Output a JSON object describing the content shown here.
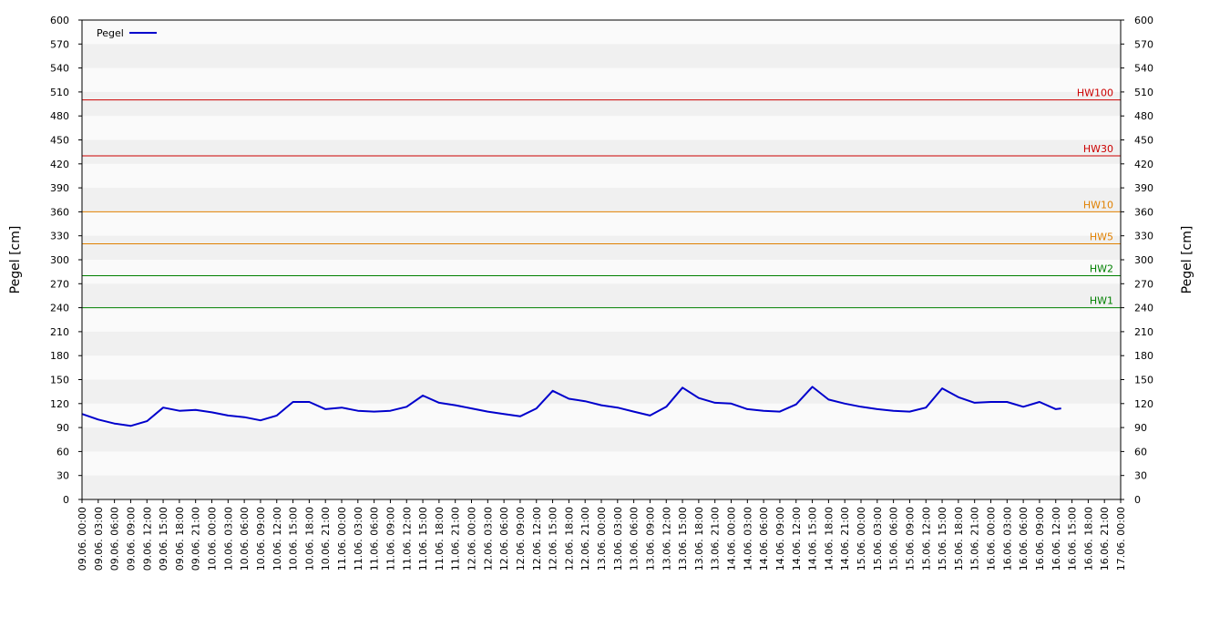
{
  "chart_data": {
    "type": "line",
    "y_label": "Pegel [cm]",
    "y2_label": "Pegel [cm]",
    "ylim": [
      0,
      600
    ],
    "yticks": [
      0,
      30,
      60,
      90,
      120,
      150,
      180,
      210,
      240,
      270,
      300,
      330,
      360,
      390,
      420,
      450,
      480,
      510,
      540,
      570,
      600
    ],
    "y2lim": [
      0,
      600
    ],
    "y2ticks": [
      0,
      30,
      60,
      90,
      120,
      150,
      180,
      210,
      240,
      270,
      300,
      330,
      360,
      390,
      420,
      450,
      480,
      510,
      540,
      570,
      600
    ],
    "bands": true,
    "legend": "top-left",
    "xlim": [
      "09.06. 00:00",
      "17.06. 00:00"
    ],
    "xticks": [
      "09.06. 00:00",
      "09.06. 03:00",
      "09.06. 06:00",
      "09.06. 09:00",
      "09.06. 12:00",
      "09.06. 15:00",
      "09.06. 18:00",
      "09.06. 21:00",
      "10.06. 00:00",
      "10.06. 03:00",
      "10.06. 06:00",
      "10.06. 09:00",
      "10.06. 12:00",
      "10.06. 15:00",
      "10.06. 18:00",
      "10.06. 21:00",
      "11.06. 00:00",
      "11.06. 03:00",
      "11.06. 06:00",
      "11.06. 09:00",
      "11.06. 12:00",
      "11.06. 15:00",
      "11.06. 18:00",
      "11.06. 21:00",
      "12.06. 00:00",
      "12.06. 03:00",
      "12.06. 06:00",
      "12.06. 09:00",
      "12.06. 12:00",
      "12.06. 15:00",
      "12.06. 18:00",
      "12.06. 21:00",
      "13.06. 00:00",
      "13.06. 03:00",
      "13.06. 06:00",
      "13.06. 09:00",
      "13.06. 12:00",
      "13.06. 15:00",
      "13.06. 18:00",
      "13.06. 21:00",
      "14.06. 00:00",
      "14.06. 03:00",
      "14.06. 06:00",
      "14.06. 09:00",
      "14.06. 12:00",
      "14.06. 15:00",
      "14.06. 18:00",
      "14.06. 21:00",
      "15.06. 00:00",
      "15.06. 03:00",
      "15.06. 06:00",
      "15.06. 09:00",
      "15.06. 12:00",
      "15.06. 15:00",
      "15.06. 18:00",
      "15.06. 21:00",
      "16.06. 00:00",
      "16.06. 03:00",
      "16.06. 06:00",
      "16.06. 09:00",
      "16.06. 12:00",
      "16.06. 15:00",
      "16.06. 18:00",
      "16.06. 21:00",
      "17.06. 00:00"
    ],
    "x": [
      "09.06. 00:00",
      "09.06. 03:00",
      "09.06. 06:00",
      "09.06. 09:00",
      "09.06. 12:00",
      "09.06. 15:00",
      "09.06. 18:00",
      "09.06. 21:00",
      "10.06. 00:00",
      "10.06. 03:00",
      "10.06. 06:00",
      "10.06. 09:00",
      "10.06. 12:00",
      "10.06. 15:00",
      "10.06. 18:00",
      "10.06. 21:00",
      "11.06. 00:00",
      "11.06. 03:00",
      "11.06. 06:00",
      "11.06. 09:00",
      "11.06. 12:00",
      "11.06. 15:00",
      "11.06. 18:00",
      "11.06. 21:00",
      "12.06. 00:00",
      "12.06. 03:00",
      "12.06. 06:00",
      "12.06. 09:00",
      "12.06. 12:00",
      "12.06. 15:00",
      "12.06. 18:00",
      "12.06. 21:00",
      "13.06. 00:00",
      "13.06. 03:00",
      "13.06. 06:00",
      "13.06. 09:00",
      "13.06. 12:00",
      "13.06. 15:00",
      "13.06. 18:00",
      "13.06. 21:00",
      "14.06. 00:00",
      "14.06. 03:00",
      "14.06. 06:00",
      "14.06. 09:00",
      "14.06. 12:00",
      "14.06. 15:00",
      "14.06. 18:00",
      "14.06. 21:00",
      "15.06. 00:00",
      "15.06. 03:00",
      "15.06. 06:00",
      "15.06. 09:00",
      "15.06. 12:00",
      "15.06. 15:00",
      "15.06. 18:00",
      "15.06. 21:00",
      "16.06. 00:00",
      "16.06. 03:00",
      "16.06. 06:00",
      "16.06. 09:00",
      "16.06. 12:00",
      "16.06. 13:00"
    ],
    "series": [
      {
        "name": "Pegel",
        "color": "#0000cc",
        "values": [
          107,
          100,
          95,
          92,
          98,
          115,
          111,
          112,
          109,
          105,
          103,
          99,
          105,
          122,
          122,
          113,
          115,
          111,
          110,
          111,
          116,
          130,
          121,
          118,
          114,
          110,
          107,
          104,
          114,
          136,
          126,
          123,
          118,
          115,
          110,
          105,
          116,
          140,
          127,
          121,
          120,
          113,
          111,
          110,
          119,
          141,
          125,
          120,
          116,
          113,
          111,
          110,
          115,
          139,
          128,
          121,
          122,
          122,
          116,
          122,
          113,
          114
        ]
      }
    ],
    "thresholds": [
      {
        "name": "HW100",
        "value": 500,
        "color": "#cc0000"
      },
      {
        "name": "HW30",
        "value": 430,
        "color": "#cc0000"
      },
      {
        "name": "HW10",
        "value": 360,
        "color": "#e08000"
      },
      {
        "name": "HW5",
        "value": 320,
        "color": "#e08000"
      },
      {
        "name": "HW2",
        "value": 280,
        "color": "#008000"
      },
      {
        "name": "HW1",
        "value": 240,
        "color": "#008000"
      }
    ]
  }
}
